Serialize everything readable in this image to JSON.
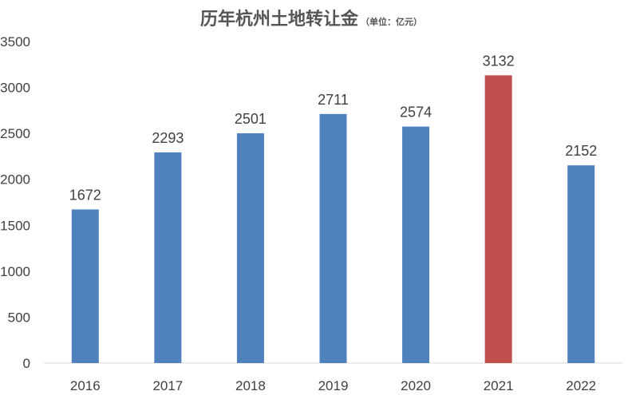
{
  "chart_data": {
    "type": "bar",
    "title": "历年杭州土地转让金",
    "subtitle": "（单位：亿元）",
    "categories": [
      "2016",
      "2017",
      "2018",
      "2019",
      "2020",
      "2021",
      "2022"
    ],
    "values": [
      1672,
      2293,
      2501,
      2711,
      2574,
      3132,
      2152
    ],
    "data_labels": [
      "1672",
      "2293",
      "2501",
      "2711",
      "2574",
      "3132",
      "2152"
    ],
    "ylim": [
      0,
      3500
    ],
    "yticks": [
      "0",
      "500",
      "1000",
      "1500",
      "2000",
      "2500",
      "3000",
      "3500"
    ],
    "grid": false,
    "legend": "none",
    "colors": {
      "bar": "#4F81BD",
      "highlight": "#C0504D",
      "highlight_category": "2021",
      "axis": "#D9D9D9"
    }
  }
}
